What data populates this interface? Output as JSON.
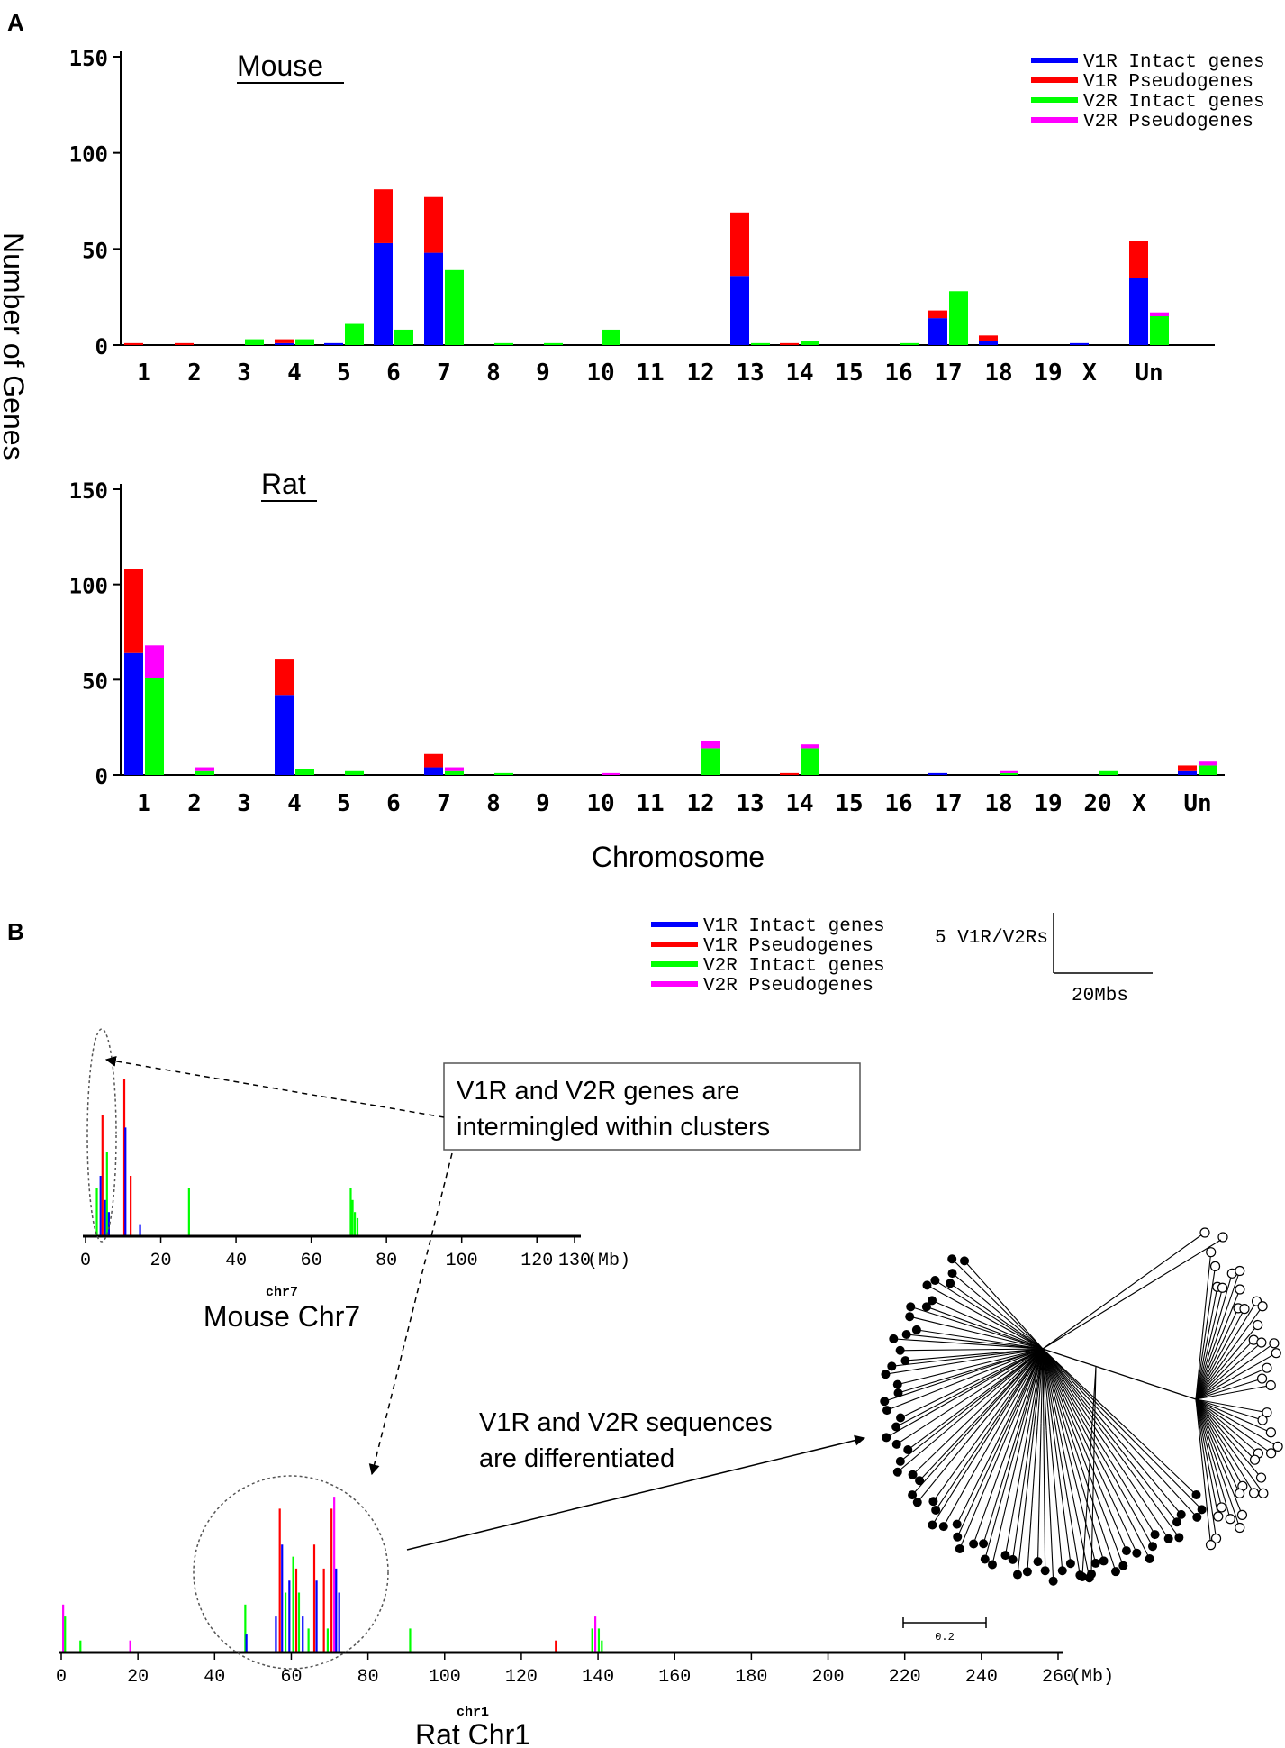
{
  "panel_labels": {
    "a": "A",
    "b": "B"
  },
  "colors": {
    "v1r_intact": "#0000ff",
    "v1r_pseudo": "#ff0000",
    "v2r_intact": "#00ff00",
    "v2r_pseudo": "#ff00ff"
  },
  "legend": [
    "V1R Intact genes",
    "V1R Pseudogenes",
    "V2R Intact genes",
    "V2R Pseudogenes"
  ],
  "shared": {
    "ylabel": "Number of Genes",
    "xlabel": "Chromosome"
  },
  "chart_data": [
    {
      "type": "bar",
      "title": "Mouse",
      "ylim": [
        0,
        150
      ],
      "yticks": [
        0,
        50,
        100,
        150
      ],
      "categories": [
        "1",
        "2",
        "3",
        "4",
        "5",
        "6",
        "7",
        "8",
        "9",
        "10",
        "11",
        "12",
        "13",
        "14",
        "15",
        "16",
        "17",
        "18",
        "19",
        "X",
        "Un"
      ],
      "series": [
        {
          "name": "V1R Intact genes",
          "values": [
            0,
            0,
            0,
            1,
            1,
            53,
            48,
            0,
            0,
            0,
            0,
            0,
            36,
            0,
            0,
            0,
            14,
            2,
            0,
            1,
            35
          ]
        },
        {
          "name": "V1R Pseudogenes",
          "values": [
            1,
            1,
            0,
            2,
            0,
            28,
            29,
            0,
            0,
            0,
            0,
            0,
            33,
            1,
            0,
            0,
            4,
            3,
            0,
            0,
            19
          ]
        },
        {
          "name": "V2R Intact genes",
          "values": [
            0,
            0,
            3,
            3,
            11,
            8,
            39,
            1,
            1,
            8,
            0,
            0,
            1,
            2,
            0,
            1,
            28,
            0,
            0,
            0,
            15
          ]
        },
        {
          "name": "V2R Pseudogenes",
          "values": [
            0,
            0,
            0,
            0,
            0,
            0,
            0,
            0,
            0,
            0,
            0,
            0,
            0,
            0,
            0,
            0,
            0,
            0,
            0,
            0,
            2
          ]
        }
      ]
    },
    {
      "type": "bar",
      "title": "Rat",
      "ylim": [
        0,
        150
      ],
      "yticks": [
        0,
        50,
        100,
        150
      ],
      "categories": [
        "1",
        "2",
        "3",
        "4",
        "5",
        "6",
        "7",
        "8",
        "9",
        "10",
        "11",
        "12",
        "13",
        "14",
        "15",
        "16",
        "17",
        "18",
        "19",
        "20",
        "X",
        "Un"
      ],
      "series": [
        {
          "name": "V1R Intact genes",
          "values": [
            64,
            0,
            0,
            42,
            0,
            0,
            4,
            0,
            0,
            0,
            0,
            0,
            0,
            0,
            0,
            0,
            1,
            0,
            0,
            0,
            0,
            2
          ]
        },
        {
          "name": "V1R Pseudogenes",
          "values": [
            44,
            0,
            0,
            19,
            0,
            0,
            7,
            0,
            0,
            0,
            0,
            0,
            0,
            1,
            0,
            0,
            0,
            0,
            0,
            0,
            0,
            3
          ]
        },
        {
          "name": "V2R Intact genes",
          "values": [
            51,
            2,
            0,
            3,
            2,
            0,
            2,
            1,
            0,
            0,
            0,
            14,
            0,
            14,
            0,
            0,
            0,
            1,
            0,
            2,
            0,
            5
          ]
        },
        {
          "name": "V2R Pseudogenes",
          "values": [
            17,
            2,
            0,
            0,
            0,
            0,
            2,
            0,
            0,
            1,
            0,
            4,
            0,
            2,
            0,
            0,
            0,
            1,
            0,
            0,
            0,
            2
          ]
        }
      ]
    },
    {
      "type": "bar",
      "title": "Mouse Chr7",
      "chr_label": "chr7",
      "unit": "(Mb)",
      "xlim": [
        0,
        130
      ],
      "xticks": [
        0,
        20,
        40,
        60,
        80,
        100,
        120,
        130
      ],
      "genes": [
        {
          "pos": 3.0,
          "color": "v2r_intact",
          "h": 4
        },
        {
          "pos": 4.0,
          "color": "v1r_intact",
          "h": 5
        },
        {
          "pos": 4.5,
          "color": "v1r_pseudo",
          "h": 10
        },
        {
          "pos": 5.2,
          "color": "v1r_intact",
          "h": 3
        },
        {
          "pos": 5.7,
          "color": "v2r_intact",
          "h": 7
        },
        {
          "pos": 6.2,
          "color": "v1r_intact",
          "h": 2
        },
        {
          "pos": 10.3,
          "color": "v1r_pseudo",
          "h": 13
        },
        {
          "pos": 10.6,
          "color": "v1r_intact",
          "h": 9
        },
        {
          "pos": 12.0,
          "color": "v1r_pseudo",
          "h": 5
        },
        {
          "pos": 14.5,
          "color": "v1r_intact",
          "h": 1
        },
        {
          "pos": 27.5,
          "color": "v2r_intact",
          "h": 4
        },
        {
          "pos": 70.5,
          "color": "v2r_intact",
          "h": 4
        },
        {
          "pos": 71.0,
          "color": "v2r_intact",
          "h": 3
        },
        {
          "pos": 71.6,
          "color": "v2r_intact",
          "h": 2
        },
        {
          "pos": 72.3,
          "color": "v2r_intact",
          "h": 1.5
        }
      ]
    },
    {
      "type": "bar",
      "title": "Rat Chr1",
      "chr_label": "chr1",
      "unit": "(Mb)",
      "xlim": [
        0,
        260
      ],
      "xticks": [
        0,
        20,
        40,
        60,
        80,
        100,
        120,
        140,
        160,
        180,
        200,
        220,
        240,
        260
      ],
      "genes": [
        {
          "pos": 0.5,
          "color": "v2r_pseudo",
          "h": 4
        },
        {
          "pos": 1.0,
          "color": "v2r_intact",
          "h": 3
        },
        {
          "pos": 5.0,
          "color": "v2r_intact",
          "h": 1
        },
        {
          "pos": 18.0,
          "color": "v2r_pseudo",
          "h": 1
        },
        {
          "pos": 48.0,
          "color": "v2r_intact",
          "h": 4
        },
        {
          "pos": 48.3,
          "color": "v1r_intact",
          "h": 1.5
        },
        {
          "pos": 56.0,
          "color": "v1r_intact",
          "h": 3
        },
        {
          "pos": 57.0,
          "color": "v1r_pseudo",
          "h": 12
        },
        {
          "pos": 57.6,
          "color": "v1r_intact",
          "h": 9
        },
        {
          "pos": 58.5,
          "color": "v2r_intact",
          "h": 5
        },
        {
          "pos": 59.5,
          "color": "v1r_intact",
          "h": 6
        },
        {
          "pos": 60.5,
          "color": "v2r_intact",
          "h": 8
        },
        {
          "pos": 61.3,
          "color": "v1r_pseudo",
          "h": 7
        },
        {
          "pos": 62.0,
          "color": "v2r_intact",
          "h": 5
        },
        {
          "pos": 63.0,
          "color": "v1r_intact",
          "h": 3
        },
        {
          "pos": 64.5,
          "color": "v2r_intact",
          "h": 2
        },
        {
          "pos": 66.0,
          "color": "v1r_pseudo",
          "h": 9
        },
        {
          "pos": 66.6,
          "color": "v1r_intact",
          "h": 6
        },
        {
          "pos": 68.5,
          "color": "v1r_pseudo",
          "h": 7
        },
        {
          "pos": 69.5,
          "color": "v2r_intact",
          "h": 2
        },
        {
          "pos": 70.5,
          "color": "v1r_pseudo",
          "h": 12
        },
        {
          "pos": 71.2,
          "color": "v2r_pseudo",
          "h": 13
        },
        {
          "pos": 71.7,
          "color": "v1r_intact",
          "h": 7
        },
        {
          "pos": 72.5,
          "color": "v1r_intact",
          "h": 5
        },
        {
          "pos": 91.0,
          "color": "v2r_intact",
          "h": 2
        },
        {
          "pos": 129.0,
          "color": "v1r_pseudo",
          "h": 1
        },
        {
          "pos": 138.5,
          "color": "v2r_intact",
          "h": 2
        },
        {
          "pos": 139.3,
          "color": "v2r_pseudo",
          "h": 3
        },
        {
          "pos": 140.2,
          "color": "v2r_intact",
          "h": 2
        },
        {
          "pos": 141.0,
          "color": "v2r_intact",
          "h": 1
        }
      ]
    }
  ],
  "annotations": {
    "scale_count": "5 V1R/V2Rs",
    "scale_length": "20Mbs",
    "box1": [
      "V1R and V2R genes are",
      "intermingled within clusters"
    ],
    "box2": [
      "V1R and V2R sequences",
      "are differentiated"
    ],
    "tree_scale": "0.2"
  }
}
